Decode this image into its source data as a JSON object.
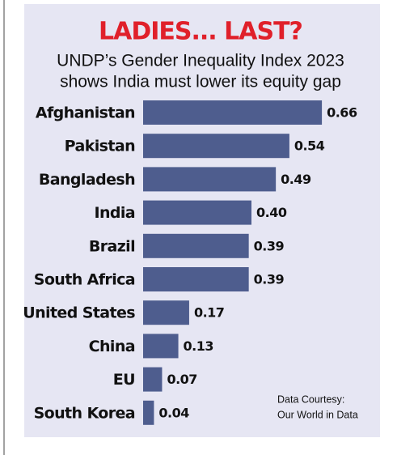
{
  "chart_data": {
    "type": "bar",
    "orientation": "horizontal",
    "title": "LADIES... LAST?",
    "subtitle": [
      "UNDP’s Gender Inequality Index 2023",
      "shows India must lower its equity gap"
    ],
    "categories": [
      "Afghanistan",
      "Pakistan",
      "Bangladesh",
      "India",
      "Brazil",
      "South Africa",
      "United States",
      "China",
      "EU",
      "South Korea"
    ],
    "values": [
      0.66,
      0.54,
      0.49,
      0.4,
      0.39,
      0.39,
      0.17,
      0.13,
      0.07,
      0.04
    ],
    "value_labels": [
      "0.66",
      "0.54",
      "0.49",
      "0.40",
      "0.39",
      "0.39",
      "0.17",
      "0.13",
      "0.07",
      "0.04"
    ],
    "color": "#4e5d8e",
    "annotation": [
      "Data Courtesy:",
      "Our World in Data"
    ]
  }
}
